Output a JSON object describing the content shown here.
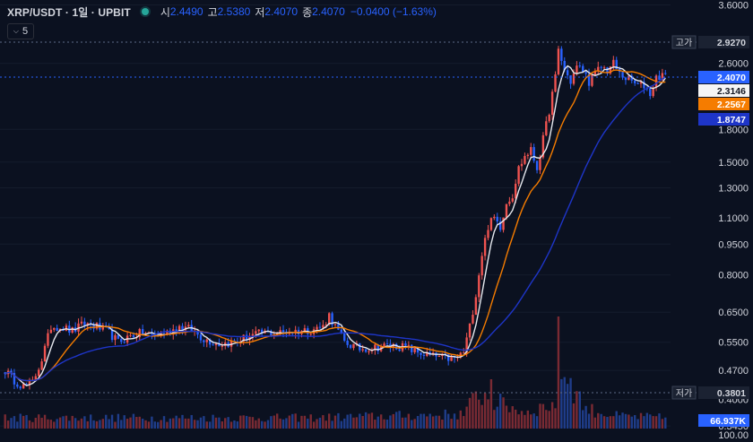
{
  "header": {
    "symbol": "XRP/USDT · 1일 · UPBIT",
    "open_label": "시",
    "open_value": "2.4490",
    "high_label": "고",
    "high_value": "2.5380",
    "low_label": "저",
    "low_value": "2.4070",
    "close_label": "종",
    "close_value": "2.4070",
    "change": "−0.0400 (−1.63%)",
    "indicator_count": "5"
  },
  "colors": {
    "background": "#0b1120",
    "up": "#ef5350",
    "down": "#2962ff",
    "ma_fast": "#e6e9ef",
    "ma_mid": "#f57c00",
    "ma_slow": "#1e35c8",
    "grid": "#151c2c",
    "axis_text": "#d1d4dc"
  },
  "chart_data": {
    "type": "candlestick",
    "scale": "log",
    "ylim": [
      0.34,
      3.7
    ],
    "y_ticks": [
      "3.6000",
      "2.6000",
      "1.8000",
      "1.5000",
      "1.3000",
      "1.1000",
      "0.9500",
      "0.8000",
      "0.6500",
      "0.5500",
      "0.4700",
      "0.4000",
      "0.3450"
    ],
    "volume_tick": "100.00",
    "price_markers": [
      {
        "label": "고가",
        "value": "2.9270"
      },
      {
        "label": "",
        "value": "2.4070"
      },
      {
        "label": "",
        "value": "2.3146"
      },
      {
        "label": "",
        "value": "2.2567"
      },
      {
        "label": "",
        "value": "1.8747"
      },
      {
        "label": "저가",
        "value": "0.3801"
      },
      {
        "label": "",
        "value": "66.937K"
      }
    ],
    "close_anchors": [
      [
        0,
        0.47
      ],
      [
        3,
        0.445
      ],
      [
        6,
        0.43
      ],
      [
        9,
        0.44
      ],
      [
        12,
        0.5
      ],
      [
        15,
        0.6
      ],
      [
        18,
        0.6
      ],
      [
        22,
        0.585
      ],
      [
        26,
        0.61
      ],
      [
        30,
        0.6
      ],
      [
        34,
        0.58
      ],
      [
        37,
        0.55
      ],
      [
        41,
        0.57
      ],
      [
        45,
        0.58
      ],
      [
        49,
        0.57
      ],
      [
        53,
        0.58
      ],
      [
        57,
        0.6
      ],
      [
        61,
        0.59
      ],
      [
        65,
        0.56
      ],
      [
        70,
        0.545
      ],
      [
        75,
        0.55
      ],
      [
        80,
        0.57
      ],
      [
        85,
        0.58
      ],
      [
        90,
        0.58
      ],
      [
        95,
        0.585
      ],
      [
        100,
        0.59
      ],
      [
        104,
        0.6
      ],
      [
        106,
        0.64
      ],
      [
        108,
        0.6
      ],
      [
        111,
        0.55
      ],
      [
        116,
        0.53
      ],
      [
        121,
        0.535
      ],
      [
        126,
        0.54
      ],
      [
        131,
        0.535
      ],
      [
        135,
        0.52
      ],
      [
        139,
        0.51
      ],
      [
        143,
        0.505
      ],
      [
        147,
        0.5
      ],
      [
        150,
        0.52
      ],
      [
        152,
        0.6
      ],
      [
        154,
        0.72
      ],
      [
        156,
        0.9
      ],
      [
        158,
        1.05
      ],
      [
        160,
        1.1
      ],
      [
        162,
        1.05
      ],
      [
        164,
        1.2
      ],
      [
        166,
        1.25
      ],
      [
        168,
        1.45
      ],
      [
        170,
        1.55
      ],
      [
        172,
        1.6
      ],
      [
        174,
        1.45
      ],
      [
        176,
        1.7
      ],
      [
        178,
        2.0
      ],
      [
        180,
        2.4
      ],
      [
        181,
        2.8
      ],
      [
        183,
        2.5
      ],
      [
        185,
        2.35
      ],
      [
        187,
        2.55
      ],
      [
        189,
        2.5
      ],
      [
        191,
        2.35
      ],
      [
        193,
        2.45
      ],
      [
        195,
        2.55
      ],
      [
        197,
        2.5
      ],
      [
        199,
        2.6
      ],
      [
        201,
        2.45
      ],
      [
        203,
        2.4
      ],
      [
        205,
        2.35
      ],
      [
        207,
        2.3
      ],
      [
        209,
        2.3
      ],
      [
        211,
        2.2
      ],
      [
        213,
        2.4
      ],
      [
        215,
        2.45
      ],
      [
        216,
        2.407
      ]
    ],
    "volume_profile": [
      [
        0,
        12
      ],
      [
        100,
        12
      ],
      [
        150,
        16
      ],
      [
        155,
        40
      ],
      [
        160,
        30
      ],
      [
        165,
        25
      ],
      [
        170,
        18
      ],
      [
        180,
        28
      ],
      [
        181,
        95
      ],
      [
        182,
        70
      ],
      [
        190,
        22
      ],
      [
        200,
        14
      ],
      [
        216,
        12
      ]
    ]
  }
}
